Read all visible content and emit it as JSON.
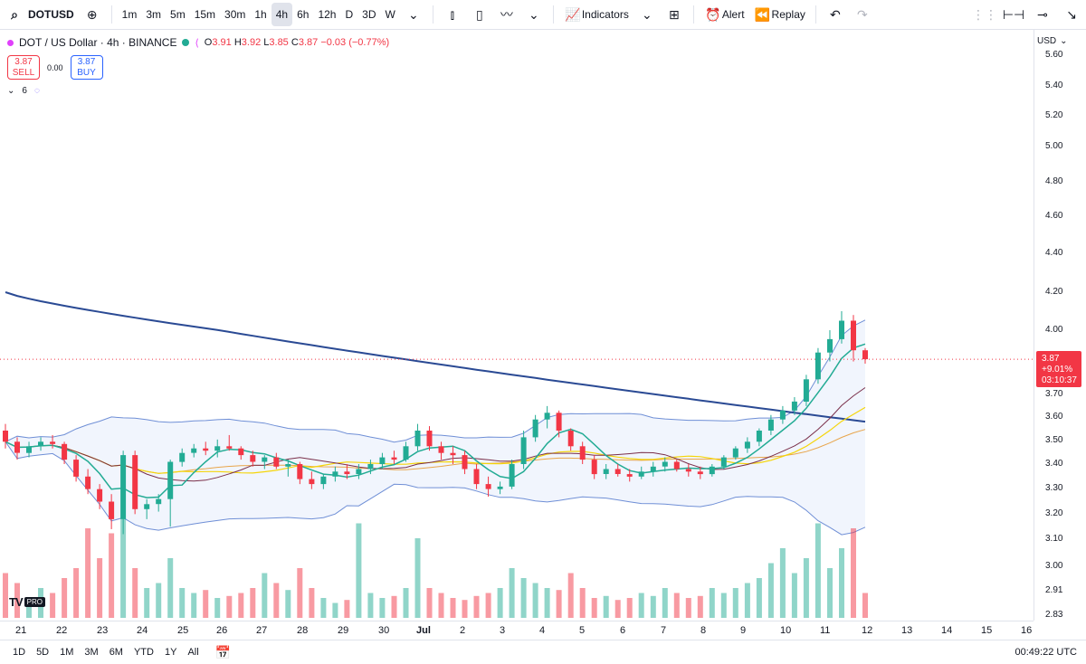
{
  "toolbar": {
    "symbol": "DOTUSD",
    "intervals": [
      "1m",
      "3m",
      "5m",
      "15m",
      "30m",
      "1h",
      "4h",
      "6h",
      "12h",
      "D",
      "3D",
      "W"
    ],
    "active_interval": "4h",
    "indicators_label": "Indicators",
    "alert_label": "Alert",
    "replay_label": "Replay"
  },
  "legend": {
    "title": "DOT / US Dollar · 4h · BINANCE",
    "o_label": "O",
    "o": "3.91",
    "h_label": "H",
    "h": "3.92",
    "l_label": "L",
    "l": "3.85",
    "c_label": "C",
    "c": "3.87",
    "change": "−0.03 (−0.77%)"
  },
  "trade": {
    "sell_price": "3.87",
    "sell_label": "SELL",
    "spread": "0.00",
    "buy_price": "3.87",
    "buy_label": "BUY"
  },
  "indicators_count": "6",
  "price_scale": {
    "currency": "USD",
    "ticks": [
      "5.60",
      "5.40",
      "5.20",
      "5.00",
      "4.80",
      "4.60",
      "4.40",
      "4.20",
      "4.00",
      "3.70",
      "3.60",
      "3.50",
      "3.40",
      "3.30",
      "3.20",
      "3.10",
      "3.00",
      "2.91",
      "2.83"
    ],
    "current_price": "3.87",
    "current_change": "+9.01%",
    "countdown": "03:10:37"
  },
  "time_axis": {
    "labels": [
      "21",
      "22",
      "23",
      "24",
      "25",
      "26",
      "27",
      "28",
      "29",
      "30",
      "Jul",
      "2",
      "3",
      "4",
      "5",
      "6",
      "7",
      "8",
      "9",
      "10",
      "11",
      "12",
      "13",
      "14",
      "15",
      "16"
    ]
  },
  "bottom": {
    "ranges": [
      "1D",
      "5D",
      "1M",
      "3M",
      "6M",
      "YTD",
      "1Y",
      "All"
    ],
    "clock": "00:49:22 UTC"
  },
  "logo": {
    "tv": "TV",
    "pro": "PRO"
  },
  "colors": {
    "up": "#22ab94",
    "down": "#f23645",
    "ma_long": "#2a4a94",
    "band": "#6f8fd6"
  },
  "chart_data": {
    "type": "candlestick",
    "interval": "4h",
    "ohlc": [
      [
        3.55,
        3.58,
        3.47,
        3.5
      ],
      [
        3.5,
        3.52,
        3.42,
        3.45
      ],
      [
        3.45,
        3.5,
        3.43,
        3.48
      ],
      [
        3.48,
        3.52,
        3.46,
        3.5
      ],
      [
        3.5,
        3.53,
        3.47,
        3.49
      ],
      [
        3.49,
        3.5,
        3.4,
        3.42
      ],
      [
        3.42,
        3.44,
        3.33,
        3.35
      ],
      [
        3.35,
        3.38,
        3.28,
        3.3
      ],
      [
        3.3,
        3.32,
        3.22,
        3.25
      ],
      [
        3.25,
        3.28,
        3.14,
        3.18
      ],
      [
        3.18,
        3.46,
        3.12,
        3.44
      ],
      [
        3.44,
        3.46,
        3.2,
        3.22
      ],
      [
        3.22,
        3.26,
        3.18,
        3.24
      ],
      [
        3.24,
        3.28,
        3.21,
        3.26
      ],
      [
        3.26,
        3.42,
        3.15,
        3.41
      ],
      [
        3.41,
        3.47,
        3.39,
        3.45
      ],
      [
        3.45,
        3.49,
        3.43,
        3.47
      ],
      [
        3.47,
        3.5,
        3.44,
        3.46
      ],
      [
        3.46,
        3.51,
        3.43,
        3.48
      ],
      [
        3.48,
        3.53,
        3.46,
        3.47
      ],
      [
        3.47,
        3.48,
        3.42,
        3.44
      ],
      [
        3.44,
        3.46,
        3.39,
        3.41
      ],
      [
        3.41,
        3.44,
        3.38,
        3.43
      ],
      [
        3.43,
        3.45,
        3.38,
        3.39
      ],
      [
        3.39,
        3.42,
        3.35,
        3.4
      ],
      [
        3.4,
        3.41,
        3.32,
        3.34
      ],
      [
        3.34,
        3.37,
        3.3,
        3.32
      ],
      [
        3.32,
        3.36,
        3.3,
        3.35
      ],
      [
        3.35,
        3.39,
        3.33,
        3.37
      ],
      [
        3.37,
        3.4,
        3.34,
        3.36
      ],
      [
        3.36,
        3.4,
        3.34,
        3.38
      ],
      [
        3.38,
        3.42,
        3.36,
        3.4
      ],
      [
        3.4,
        3.45,
        3.38,
        3.43
      ],
      [
        3.43,
        3.46,
        3.4,
        3.42
      ],
      [
        3.42,
        3.5,
        3.41,
        3.48
      ],
      [
        3.48,
        3.58,
        3.46,
        3.55
      ],
      [
        3.55,
        3.57,
        3.46,
        3.48
      ],
      [
        3.48,
        3.5,
        3.42,
        3.45
      ],
      [
        3.45,
        3.48,
        3.4,
        3.44
      ],
      [
        3.44,
        3.46,
        3.36,
        3.38
      ],
      [
        3.38,
        3.4,
        3.3,
        3.32
      ],
      [
        3.32,
        3.35,
        3.27,
        3.3
      ],
      [
        3.3,
        3.33,
        3.28,
        3.31
      ],
      [
        3.31,
        3.42,
        3.3,
        3.4
      ],
      [
        3.4,
        3.55,
        3.38,
        3.52
      ],
      [
        3.52,
        3.62,
        3.5,
        3.6
      ],
      [
        3.6,
        3.66,
        3.56,
        3.63
      ],
      [
        3.63,
        3.64,
        3.52,
        3.55
      ],
      [
        3.55,
        3.56,
        3.46,
        3.48
      ],
      [
        3.48,
        3.5,
        3.4,
        3.42
      ],
      [
        3.42,
        3.44,
        3.34,
        3.36
      ],
      [
        3.36,
        3.4,
        3.34,
        3.38
      ],
      [
        3.38,
        3.4,
        3.35,
        3.36
      ],
      [
        3.36,
        3.38,
        3.33,
        3.35
      ],
      [
        3.35,
        3.39,
        3.34,
        3.37
      ],
      [
        3.37,
        3.41,
        3.35,
        3.39
      ],
      [
        3.39,
        3.43,
        3.37,
        3.41
      ],
      [
        3.41,
        3.42,
        3.37,
        3.38
      ],
      [
        3.38,
        3.4,
        3.35,
        3.37
      ],
      [
        3.37,
        3.39,
        3.34,
        3.36
      ],
      [
        3.36,
        3.4,
        3.35,
        3.39
      ],
      [
        3.39,
        3.44,
        3.38,
        3.43
      ],
      [
        3.43,
        3.48,
        3.42,
        3.47
      ],
      [
        3.47,
        3.52,
        3.45,
        3.5
      ],
      [
        3.5,
        3.56,
        3.48,
        3.55
      ],
      [
        3.55,
        3.62,
        3.53,
        3.6
      ],
      [
        3.6,
        3.66,
        3.58,
        3.64
      ],
      [
        3.64,
        3.7,
        3.62,
        3.68
      ],
      [
        3.68,
        3.8,
        3.66,
        3.78
      ],
      [
        3.78,
        3.92,
        3.76,
        3.9
      ],
      [
        3.9,
        4.0,
        3.86,
        3.96
      ],
      [
        3.96,
        4.1,
        3.94,
        4.05
      ],
      [
        4.05,
        4.08,
        3.86,
        3.91
      ],
      [
        3.91,
        3.92,
        3.85,
        3.87
      ]
    ],
    "volume_relative": [
      0.45,
      0.35,
      0.2,
      0.3,
      0.25,
      0.4,
      0.5,
      0.9,
      0.6,
      0.85,
      1.0,
      0.5,
      0.3,
      0.35,
      0.6,
      0.3,
      0.25,
      0.28,
      0.2,
      0.22,
      0.25,
      0.3,
      0.45,
      0.35,
      0.28,
      0.5,
      0.3,
      0.2,
      0.15,
      0.18,
      0.95,
      0.25,
      0.2,
      0.22,
      0.3,
      0.8,
      0.3,
      0.25,
      0.2,
      0.18,
      0.22,
      0.25,
      0.3,
      0.5,
      0.4,
      0.35,
      0.3,
      0.28,
      0.45,
      0.3,
      0.2,
      0.22,
      0.18,
      0.2,
      0.25,
      0.22,
      0.3,
      0.25,
      0.2,
      0.22,
      0.3,
      0.25,
      0.3,
      0.35,
      0.4,
      0.55,
      0.7,
      0.45,
      0.6,
      0.95,
      0.5,
      0.7,
      0.9,
      0.25
    ],
    "ylim": [
      2.83,
      5.6
    ],
    "legend": "top-left"
  }
}
